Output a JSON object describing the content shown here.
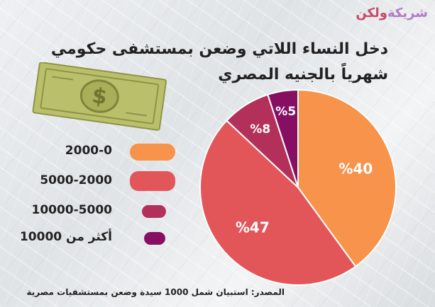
{
  "logo": {
    "part1": "شريكة",
    "part2": "ولكن"
  },
  "title": {
    "line1": "دخل النساء اللاتي وضعن بمستشفى حكومي",
    "line2": "شهرياً بالجنيه المصري"
  },
  "source": "المصدر: استبيان شمل 1000 سيدة وضعن بمستشفيات مصرية",
  "colors": {
    "c1": "#f7934a",
    "c2": "#e2565a",
    "c3": "#b3305a",
    "c4": "#870f63"
  },
  "chart_data": {
    "type": "pie",
    "title": "دخل النساء اللاتي وضعن بمستشفى حكومي شهرياً بالجنيه المصري",
    "categories": [
      "2000-0",
      "5000-2000",
      "10000-5000",
      "أكثر من 10000"
    ],
    "values": [
      40,
      47,
      8,
      5
    ],
    "labels": [
      "%40",
      "%47",
      "%8",
      "%5"
    ],
    "legend_placement": "left"
  }
}
